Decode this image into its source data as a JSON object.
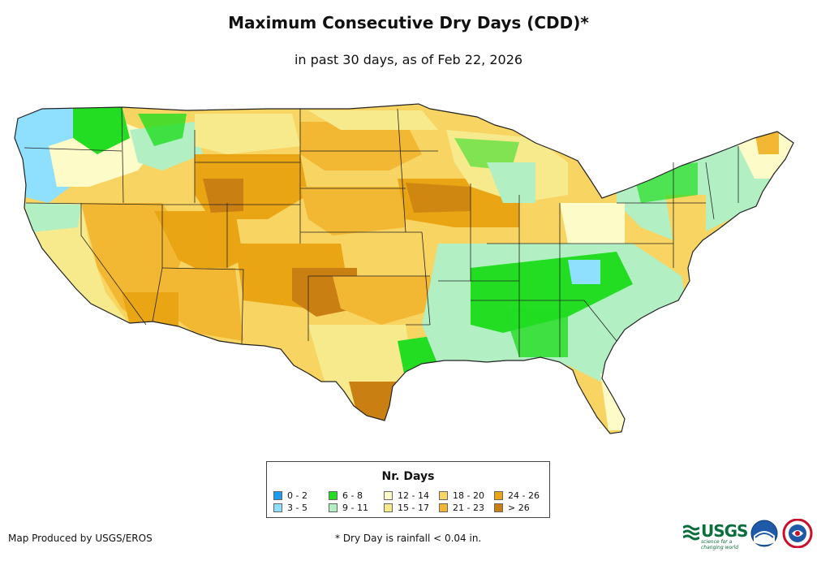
{
  "header": {
    "title": "Maximum Consecutive Dry Days (CDD)*",
    "subtitle": "in past 30 days, as of Feb 22, 2026"
  },
  "legend": {
    "title": "Nr. Days",
    "items": [
      {
        "label": "0 - 2",
        "color": "#1a9cf0"
      },
      {
        "label": "3 - 5",
        "color": "#8fe0ff"
      },
      {
        "label": "6 - 8",
        "color": "#22dd22"
      },
      {
        "label": "9 - 11",
        "color": "#b2f0c4"
      },
      {
        "label": "12 - 14",
        "color": "#fdfbc8"
      },
      {
        "label": "15 - 17",
        "color": "#f7ea8c"
      },
      {
        "label": "18 - 20",
        "color": "#f8d462"
      },
      {
        "label": "21 - 23",
        "color": "#f2b733"
      },
      {
        "label": "24 - 26",
        "color": "#e9a514"
      },
      {
        "label": "> 26",
        "color": "#c97f12"
      }
    ]
  },
  "footer": {
    "credit": "Map Produced by USGS/EROS",
    "note": "* Dry Day is rainfall < 0.04 in."
  },
  "logos": {
    "usgs": "USGS",
    "usgs_tagline": "science for a changing world",
    "noaa": "NOAA",
    "nws": "NWS"
  }
}
